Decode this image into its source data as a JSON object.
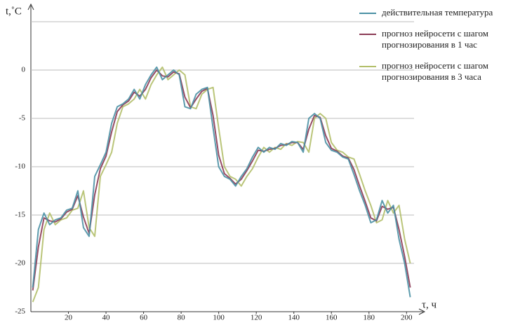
{
  "chart_data": {
    "type": "line",
    "y_label": "t,˚C",
    "x_label": "τ, ч",
    "x": [
      1,
      4,
      7,
      10,
      13,
      16,
      19,
      22,
      25,
      28,
      31,
      34,
      37,
      40,
      43,
      46,
      49,
      52,
      55,
      58,
      61,
      64,
      67,
      70,
      73,
      76,
      79,
      82,
      85,
      88,
      91,
      94,
      97,
      100,
      103,
      106,
      109,
      112,
      115,
      118,
      121,
      124,
      127,
      130,
      133,
      136,
      139,
      142,
      145,
      148,
      151,
      154,
      157,
      160,
      163,
      166,
      169,
      172,
      175,
      178,
      181,
      184,
      187,
      190,
      193,
      196,
      199,
      202
    ],
    "series": [
      {
        "name": "действительная температура",
        "color": "#4a90a4",
        "values": [
          -22.5,
          -16.5,
          -14.8,
          -16,
          -15.5,
          -15.3,
          -14.5,
          -14.3,
          -12.5,
          -16.3,
          -17.2,
          -11,
          -9.8,
          -8.5,
          -5.5,
          -3.8,
          -3.5,
          -3,
          -2,
          -3,
          -1.5,
          -0.5,
          0.3,
          -1,
          -0.5,
          0,
          -0.5,
          -3.8,
          -4,
          -2.5,
          -2,
          -1.8,
          -6,
          -10,
          -11,
          -11.3,
          -12,
          -11,
          -10.2,
          -9,
          -8,
          -8.5,
          -8,
          -8.2,
          -7.6,
          -7.8,
          -7.4,
          -7.5,
          -8.5,
          -5,
          -4.5,
          -5,
          -7.5,
          -8.3,
          -8.5,
          -9,
          -9.2,
          -10.8,
          -12.5,
          -14,
          -15.8,
          -15.5,
          -13.5,
          -14.8,
          -14,
          -17.5,
          -20,
          -23.5
        ]
      },
      {
        "name": "прогноз нейросети с шагом прогнозирования в 1 час",
        "color": "#8b3a55",
        "values": [
          -22.8,
          -18.3,
          -15.3,
          -15.6,
          -15.7,
          -15.4,
          -14.7,
          -14.4,
          -13,
          -15.2,
          -16.9,
          -12.9,
          -10.2,
          -8.9,
          -6.4,
          -4.3,
          -3.6,
          -3.2,
          -2.3,
          -2.7,
          -2,
          -0.8,
          0,
          -0.6,
          -0.7,
          -0.2,
          -0.4,
          -2.8,
          -3.9,
          -3,
          -2.2,
          -1.9,
          -4.7,
          -8.8,
          -10.7,
          -11.2,
          -11.8,
          -11.3,
          -10.4,
          -9.4,
          -8.3,
          -8.4,
          -8.2,
          -8.1,
          -7.8,
          -7.7,
          -7.5,
          -7.5,
          -8.2,
          -6.1,
          -4.7,
          -4.9,
          -6.8,
          -8.1,
          -8.4,
          -8.9,
          -9.1,
          -10.3,
          -12,
          -13.6,
          -15.3,
          -15.6,
          -14.1,
          -14.4,
          -14.2,
          -16.5,
          -19.3,
          -22.5
        ]
      },
      {
        "name": "прогноз нейросети с шагом прогнозирования в 3 часа",
        "color": "#b3bf6a",
        "values": [
          -24,
          -22.5,
          -16.5,
          -14.8,
          -16,
          -15.5,
          -15.3,
          -14.5,
          -14.3,
          -12.5,
          -16.3,
          -17.2,
          -11,
          -9.8,
          -8.5,
          -5.5,
          -3.8,
          -3.5,
          -3,
          -2,
          -3,
          -1.5,
          -0.5,
          0.3,
          -1,
          -0.5,
          0,
          -0.5,
          -3.8,
          -4,
          -2.5,
          -2,
          -1.8,
          -6,
          -10,
          -11,
          -11.3,
          -12,
          -11,
          -10.2,
          -9,
          -8,
          -8.5,
          -8,
          -8.2,
          -7.6,
          -7.8,
          -7.4,
          -7.5,
          -8.5,
          -5,
          -4.5,
          -5,
          -7.5,
          -8.3,
          -8.5,
          -9,
          -9.2,
          -10.8,
          -12.5,
          -14,
          -15.8,
          -15.5,
          -13.5,
          -14.8,
          -14,
          -17.5,
          -20
        ]
      }
    ],
    "xlim": [
      0,
      204
    ],
    "xticks": [
      20,
      40,
      60,
      80,
      100,
      120,
      140,
      160,
      180,
      200
    ],
    "ylim": [
      -25,
      5
    ],
    "yticks": [
      -25,
      -20,
      -15,
      -10,
      -5,
      0
    ],
    "grid": true
  }
}
